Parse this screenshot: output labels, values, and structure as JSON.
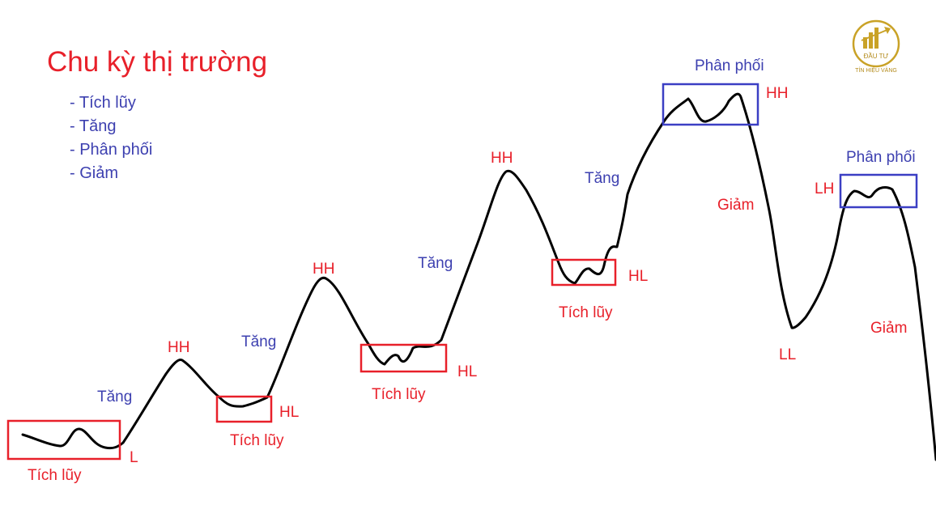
{
  "title": "Chu kỳ thị trường",
  "legend": [
    "- Tích lũy",
    "- Tăng",
    "- Phân phối",
    "- Giảm"
  ],
  "logo": {
    "brand_line1": "ĐẦU TƯ",
    "brand_line2": "TÍN HIỆU VÀNG"
  },
  "colors": {
    "title": "#e8202a",
    "legend": "#3d40b0",
    "red_label": "#e8202a",
    "blue_label": "#3d40b0",
    "accumulation_box": "#e8202a",
    "distribution_box": "#3b3fc4",
    "curve": "#000000",
    "logo_gold": "#c9a227"
  },
  "labels": {
    "tich_luy": "Tích lũy",
    "tang": "Tăng",
    "phan_phoi": "Phân phối",
    "giam": "Giảm",
    "hh": "HH",
    "hl": "HL",
    "l": "L",
    "ll": "LL",
    "lh": "LH"
  }
}
